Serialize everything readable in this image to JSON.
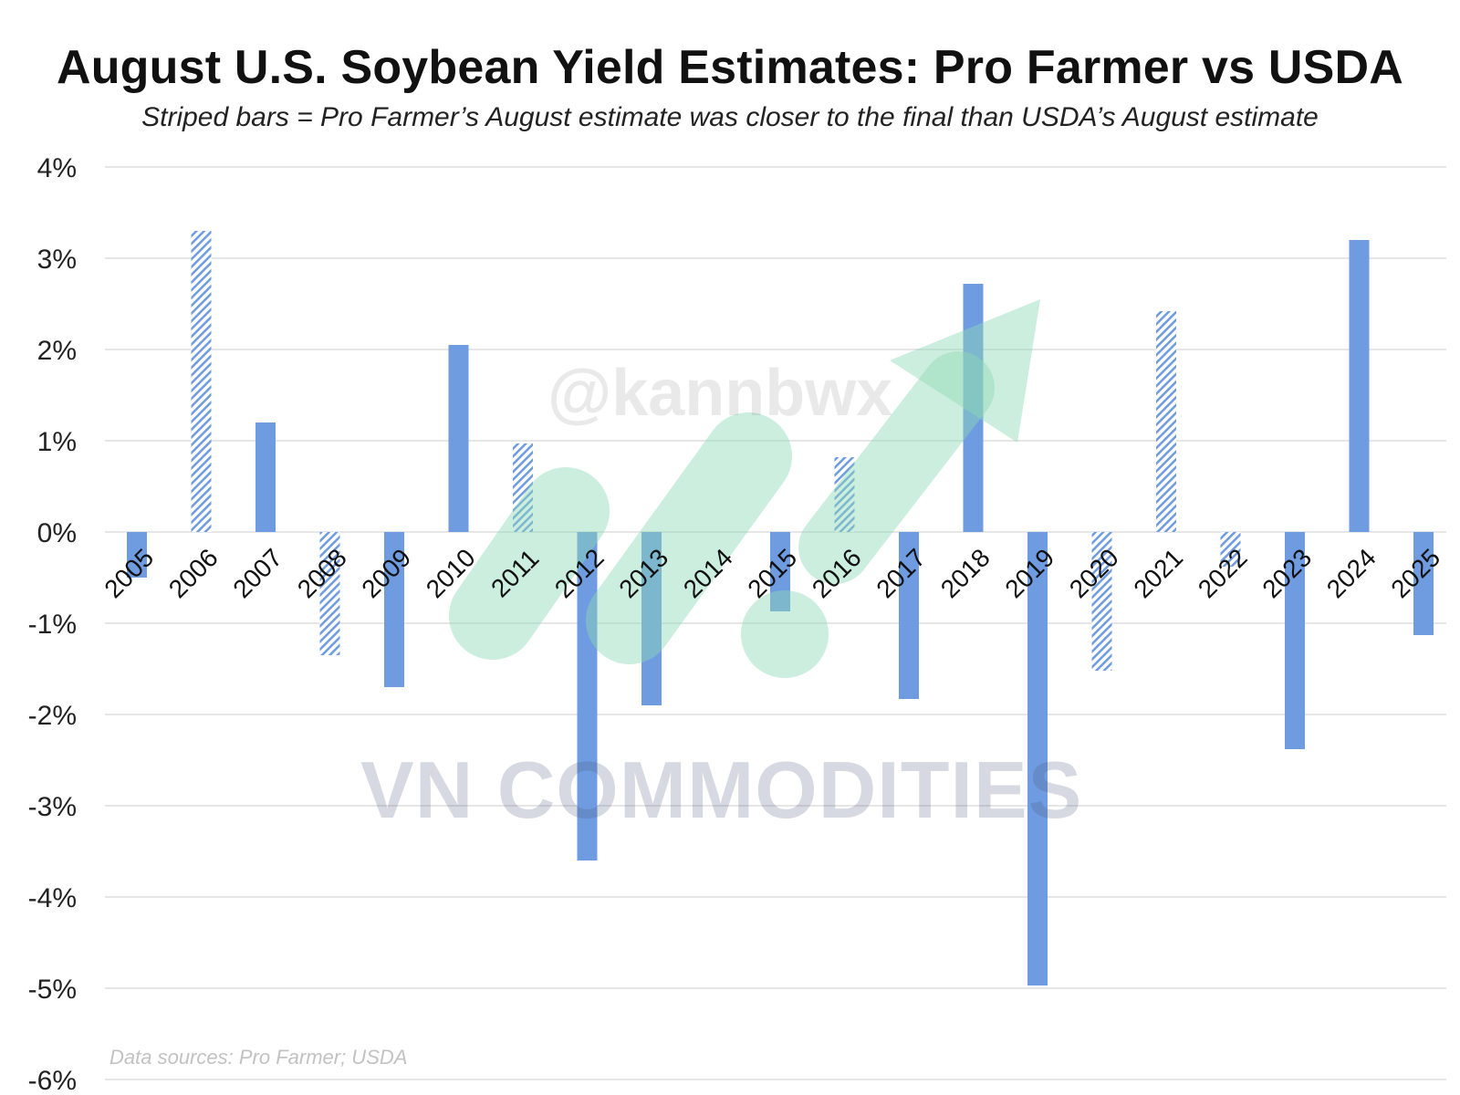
{
  "colors": {
    "bar": "#6f9be0",
    "stripe": "#6f9be0",
    "stripe_bg": "#ffffff",
    "grid": "#e6e6e6",
    "logo_green": "#8fd9b6"
  },
  "chart_data": {
    "type": "bar",
    "title": "August U.S. Soybean Yield Estimates: Pro Farmer vs USDA",
    "subtitle": "Striped bars = Pro Farmer’s August estimate was closer to the final than USDA’s August estimate",
    "categories": [
      "2005",
      "2006",
      "2007",
      "2008",
      "2009",
      "2010",
      "2011",
      "2012",
      "2013",
      "2014",
      "2015",
      "2016",
      "2017",
      "2018",
      "2019",
      "2020",
      "2021",
      "2022",
      "2023",
      "2024",
      "2025"
    ],
    "values": [
      -0.5,
      3.3,
      1.2,
      -1.35,
      -1.7,
      2.05,
      0.97,
      -3.6,
      -1.9,
      0.0,
      -0.87,
      0.82,
      -1.83,
      2.72,
      -4.97,
      -1.52,
      2.42,
      -0.38,
      -2.38,
      3.2,
      -1.13
    ],
    "striped": [
      false,
      true,
      false,
      true,
      false,
      false,
      true,
      false,
      false,
      false,
      false,
      true,
      false,
      false,
      false,
      true,
      true,
      true,
      false,
      false,
      false
    ],
    "ylim": [
      -6,
      4
    ],
    "yticks": [
      4,
      3,
      2,
      1,
      0,
      -1,
      -2,
      -3,
      -4,
      -5,
      -6
    ],
    "ytick_labels": [
      "4%",
      "3%",
      "2%",
      "1%",
      "0%",
      "-1%",
      "-2%",
      "-3%",
      "-4%",
      "-5%",
      "-6%"
    ],
    "xlabel": "",
    "ylabel": "",
    "grid": true,
    "source_note": "Data sources: Pro Farmer; USDA"
  },
  "watermark": {
    "handle": "@kannbwx",
    "brand": "VN COMMODITIES"
  }
}
